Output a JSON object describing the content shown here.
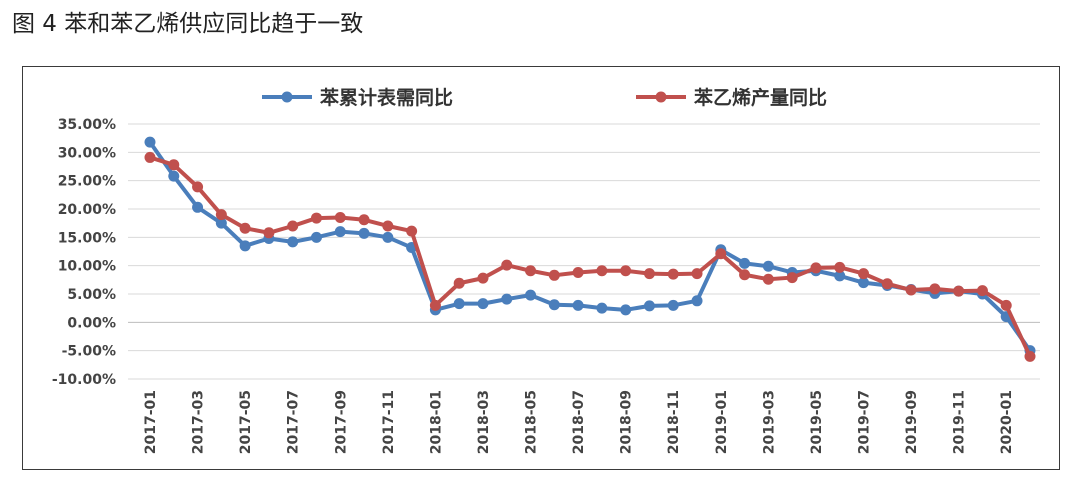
{
  "figure": {
    "title": "图 4  苯和苯乙烯供应同比趋于一致"
  },
  "chart_data": {
    "type": "line",
    "ylim": [
      -10,
      35
    ],
    "yticks": [
      35,
      30,
      25,
      20,
      15,
      10,
      5,
      0,
      -5,
      -10
    ],
    "ytick_labels": [
      "35.00%",
      "30.00%",
      "25.00%",
      "20.00%",
      "15.00%",
      "10.00%",
      "5.00%",
      "0.00%",
      "-5.00%",
      "-10.00%"
    ],
    "x": [
      "2017-01",
      "2017-02",
      "2017-03",
      "2017-04",
      "2017-05",
      "2017-06",
      "2017-07",
      "2017-08",
      "2017-09",
      "2017-10",
      "2017-11",
      "2017-12",
      "2018-01",
      "2018-02",
      "2018-03",
      "2018-04",
      "2018-05",
      "2018-06",
      "2018-07",
      "2018-08",
      "2018-09",
      "2018-10",
      "2018-11",
      "2018-12",
      "2019-01",
      "2019-02",
      "2019-03",
      "2019-04",
      "2019-05",
      "2019-06",
      "2019-07",
      "2019-08",
      "2019-09",
      "2019-10",
      "2019-11",
      "2019-12",
      "2020-01",
      "2020-02"
    ],
    "xtick_labels": [
      "2017-01",
      "2017-03",
      "2017-05",
      "2017-07",
      "2017-09",
      "2017-11",
      "2018-01",
      "2018-03",
      "2018-05",
      "2018-07",
      "2018-09",
      "2018-11",
      "2019-01",
      "2019-03",
      "2019-05",
      "2019-07",
      "2019-09",
      "2019-11",
      "2020-01"
    ],
    "legend_position": "top",
    "grid": "horizontal",
    "series": [
      {
        "name": "苯累计表需同比",
        "color": "#4a7ebb",
        "values": [
          31.8,
          25.8,
          20.3,
          17.5,
          13.5,
          14.8,
          14.2,
          15.0,
          16.0,
          15.7,
          15.0,
          13.2,
          2.2,
          3.3,
          3.3,
          4.1,
          4.8,
          3.1,
          3.0,
          2.5,
          2.2,
          2.9,
          3.0,
          3.8,
          12.8,
          10.4,
          9.9,
          8.8,
          9.1,
          8.2,
          7.0,
          6.5,
          5.8,
          5.1,
          5.5,
          5.0,
          1.0,
          -5.0
        ]
      },
      {
        "name": "苯乙烯产量同比",
        "color": "#c0504d",
        "values": [
          29.1,
          27.8,
          23.9,
          19.0,
          16.6,
          15.8,
          17.0,
          18.4,
          18.5,
          18.1,
          17.0,
          16.1,
          3.0,
          6.9,
          7.8,
          10.1,
          9.1,
          8.3,
          8.8,
          9.1,
          9.1,
          8.6,
          8.5,
          8.6,
          12.1,
          8.4,
          7.6,
          7.9,
          9.6,
          9.7,
          8.6,
          6.8,
          5.7,
          5.9,
          5.5,
          5.6,
          3.0,
          -6.0
        ]
      }
    ]
  }
}
